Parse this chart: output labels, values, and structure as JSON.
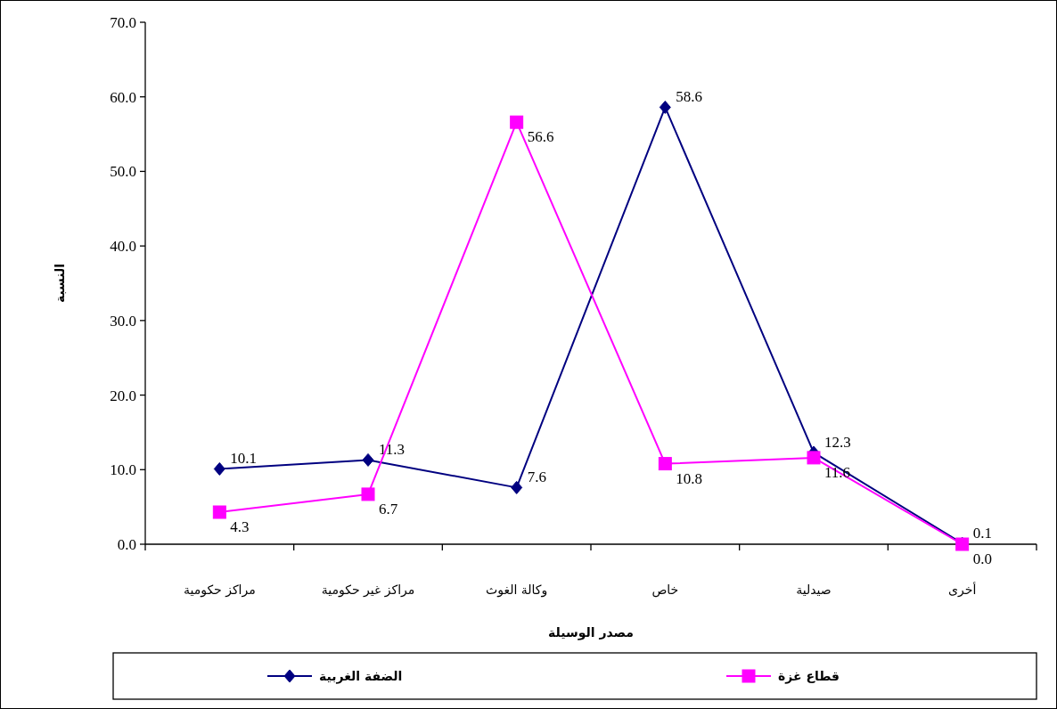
{
  "chart_data": {
    "type": "line",
    "xlabel": "مصدر الوسيلة",
    "ylabel": "النسبة",
    "categories": [
      "مراكز حكومية",
      "مراكز غير حكومية",
      "وكالة الغوث",
      "خاص",
      "صيدلية",
      "أخرى"
    ],
    "series": [
      {
        "name": "الضفة الغربية",
        "color": "#000080",
        "marker": "diamond",
        "values": [
          10.1,
          11.3,
          7.6,
          58.6,
          12.3,
          0.1
        ],
        "value_labels": [
          "10.1",
          "11.3",
          "7.6",
          "58.6",
          "12.3",
          "0.1"
        ]
      },
      {
        "name": "قطاع غزة",
        "color": "#ff00ff",
        "marker": "square",
        "values": [
          4.3,
          6.7,
          56.6,
          10.8,
          11.6,
          0.0
        ],
        "value_labels": [
          "4.3",
          "6.7",
          "56.6",
          "10.8",
          "11.6",
          "0.0"
        ]
      }
    ],
    "ylim": [
      0,
      70
    ],
    "yticks": [
      {
        "value": 0,
        "label": "0.0"
      },
      {
        "value": 10,
        "label": "10.0"
      },
      {
        "value": 20,
        "label": "20.0"
      },
      {
        "value": 30,
        "label": "30.0"
      },
      {
        "value": 40,
        "label": "40.0"
      },
      {
        "value": 50,
        "label": "50.0"
      },
      {
        "value": 60,
        "label": "60.0"
      },
      {
        "value": 70,
        "label": "70.0"
      }
    ],
    "legend": "bottom",
    "grid": false,
    "line_style": "solid"
  }
}
